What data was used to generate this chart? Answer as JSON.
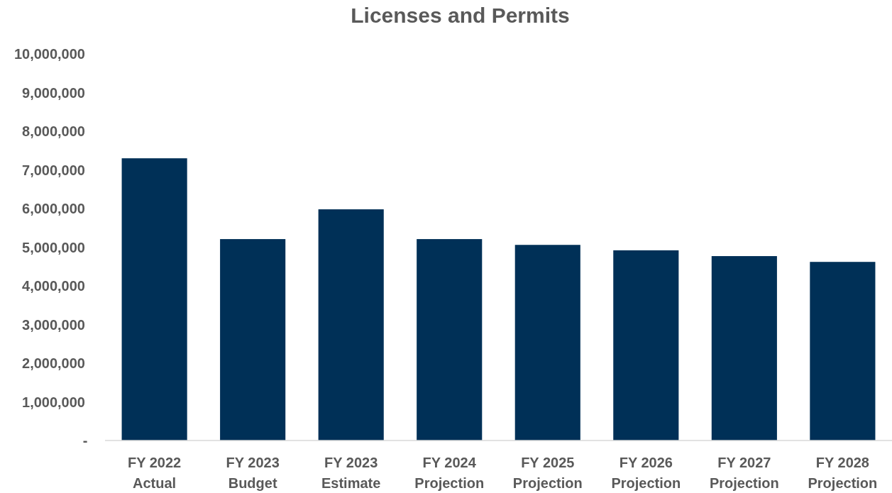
{
  "chart_data": {
    "type": "bar",
    "title": "Licenses and Permits",
    "categories": [
      "FY 2022\nActual",
      "FY 2023\nBudget",
      "FY 2023\nEstimate",
      "FY 2024\nProjection",
      "FY 2025\nProjection",
      "FY 2026\nProjection",
      "FY 2027\nProjection",
      "FY 2028\nProjection"
    ],
    "values": [
      7300000,
      5210000,
      5980000,
      5210000,
      5060000,
      4920000,
      4770000,
      4620000
    ],
    "color": "#003057",
    "ylim": [
      0,
      10000000
    ],
    "yticks": [
      {
        "value": 0,
        "label": "-"
      },
      {
        "value": 1000000,
        "label": "1,000,000"
      },
      {
        "value": 2000000,
        "label": "2,000,000"
      },
      {
        "value": 3000000,
        "label": "3,000,000"
      },
      {
        "value": 4000000,
        "label": "4,000,000"
      },
      {
        "value": 5000000,
        "label": "5,000,000"
      },
      {
        "value": 6000000,
        "label": "6,000,000"
      },
      {
        "value": 7000000,
        "label": "7,000,000"
      },
      {
        "value": 8000000,
        "label": "8,000,000"
      },
      {
        "value": 9000000,
        "label": "9,000,000"
      },
      {
        "value": 10000000,
        "label": "10,000,000"
      }
    ],
    "grid": false
  }
}
